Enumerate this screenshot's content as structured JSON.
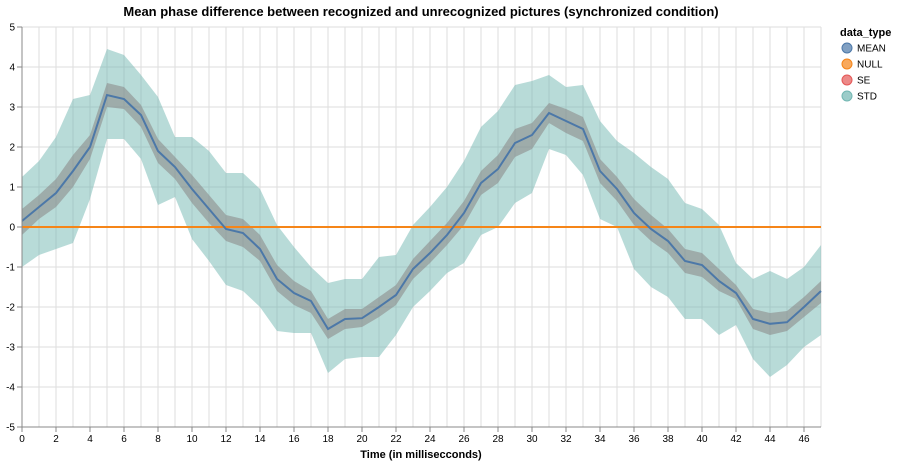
{
  "chart_data": {
    "type": "area",
    "title": "Mean phase difference between recognized and unrecognized pictures (synchronized condition)",
    "xlabel": "Time (in millisecconds)",
    "ylabel": "",
    "xlim": [
      0,
      47
    ],
    "ylim": [
      -5,
      5
    ],
    "x_ticks": [
      "0",
      "2",
      "4",
      "6",
      "8",
      "10",
      "12",
      "14",
      "16",
      "18",
      "20",
      "22",
      "24",
      "26",
      "28",
      "30",
      "32",
      "34",
      "36",
      "38",
      "40",
      "42",
      "44",
      "46"
    ],
    "y_ticks": [
      "5",
      "4",
      "3",
      "2",
      "1",
      "0",
      "-1",
      "-2",
      "-3",
      "-4",
      "-5"
    ],
    "grid": true,
    "legend": {
      "title": "data_type",
      "placement": "top-right",
      "items": [
        {
          "label": "MEAN",
          "color": "#4c78a8"
        },
        {
          "label": "NULL",
          "color": "#f58518"
        },
        {
          "label": "SE",
          "color": "#e45756"
        },
        {
          "label": "STD",
          "color": "#72b7b2"
        }
      ]
    },
    "x": [
      0,
      1,
      2,
      3,
      4,
      5,
      6,
      7,
      8,
      9,
      10,
      11,
      12,
      13,
      14,
      15,
      16,
      17,
      18,
      19,
      20,
      21,
      22,
      23,
      24,
      25,
      26,
      27,
      28,
      29,
      30,
      31,
      32,
      33,
      34,
      35,
      36,
      37,
      38,
      39,
      40,
      41,
      42,
      43,
      44,
      45,
      46,
      47
    ],
    "series": [
      {
        "name": "MEAN",
        "color": "#4c78a8",
        "values": [
          0.15,
          0.5,
          0.85,
          1.4,
          2.0,
          3.3,
          3.2,
          2.8,
          1.9,
          1.5,
          0.95,
          0.45,
          -0.05,
          -0.15,
          -0.55,
          -1.3,
          -1.65,
          -1.85,
          -2.55,
          -2.3,
          -2.28,
          -2.0,
          -1.7,
          -1.05,
          -0.65,
          -0.2,
          0.35,
          1.1,
          1.45,
          2.1,
          2.3,
          2.85,
          2.65,
          2.45,
          1.4,
          0.95,
          0.35,
          -0.05,
          -0.35,
          -0.85,
          -0.95,
          -1.35,
          -1.65,
          -2.3,
          -2.42,
          -2.38,
          -2.0,
          -1.6
        ]
      },
      {
        "name": "SE",
        "color": "#e45756",
        "lower": [
          -0.2,
          0.2,
          0.5,
          1.0,
          1.7,
          3.0,
          2.95,
          2.5,
          1.6,
          1.2,
          0.6,
          0.1,
          -0.35,
          -0.5,
          -0.85,
          -1.6,
          -1.95,
          -2.15,
          -2.8,
          -2.55,
          -2.5,
          -2.25,
          -1.95,
          -1.3,
          -0.9,
          -0.45,
          0.05,
          0.8,
          1.1,
          1.75,
          1.95,
          2.6,
          2.35,
          2.15,
          1.1,
          0.65,
          0.05,
          -0.35,
          -0.65,
          -1.15,
          -1.25,
          -1.6,
          -1.8,
          -2.55,
          -2.7,
          -2.6,
          -2.25,
          -1.9
        ],
        "upper": [
          0.45,
          0.8,
          1.2,
          1.8,
          2.3,
          3.6,
          3.5,
          3.05,
          2.2,
          1.75,
          1.3,
          0.8,
          0.3,
          0.2,
          -0.2,
          -0.95,
          -1.35,
          -1.6,
          -2.3,
          -2.05,
          -2.05,
          -1.75,
          -1.45,
          -0.8,
          -0.35,
          0.1,
          0.65,
          1.4,
          1.8,
          2.45,
          2.6,
          3.1,
          2.95,
          2.75,
          1.7,
          1.25,
          0.7,
          0.3,
          -0.05,
          -0.55,
          -0.65,
          -1.05,
          -1.45,
          -2.05,
          -2.15,
          -2.1,
          -1.75,
          -1.35
        ]
      },
      {
        "name": "STD",
        "color": "#72b7b2",
        "lower": [
          -1.0,
          -0.7,
          -0.55,
          -0.4,
          0.7,
          2.2,
          2.2,
          1.7,
          0.55,
          0.75,
          -0.3,
          -0.85,
          -1.45,
          -1.6,
          -2.0,
          -2.6,
          -2.65,
          -2.65,
          -3.65,
          -3.3,
          -3.25,
          -3.25,
          -2.7,
          -2.0,
          -1.6,
          -1.15,
          -0.9,
          -0.2,
          0.0,
          0.6,
          0.85,
          1.95,
          1.8,
          1.3,
          0.2,
          0.0,
          -1.05,
          -1.5,
          -1.75,
          -2.3,
          -2.3,
          -2.7,
          -2.45,
          -3.3,
          -3.75,
          -3.45,
          -3.0,
          -2.7
        ],
        "upper": [
          1.25,
          1.65,
          2.25,
          3.2,
          3.3,
          4.45,
          4.3,
          3.8,
          3.25,
          2.25,
          2.25,
          1.9,
          1.35,
          1.35,
          0.95,
          0.05,
          -0.5,
          -1.0,
          -1.4,
          -1.3,
          -1.3,
          -0.75,
          -0.7,
          0.05,
          0.5,
          1.0,
          1.65,
          2.5,
          2.9,
          3.55,
          3.65,
          3.8,
          3.5,
          3.55,
          2.65,
          2.15,
          1.85,
          1.5,
          1.2,
          0.6,
          0.45,
          0.05,
          -0.9,
          -1.3,
          -1.1,
          -1.3,
          -1.0,
          -0.45
        ]
      },
      {
        "name": "NULL",
        "color": "#f58518",
        "values": [
          0,
          0,
          0,
          0,
          0,
          0,
          0,
          0,
          0,
          0,
          0,
          0,
          0,
          0,
          0,
          0,
          0,
          0,
          0,
          0,
          0,
          0,
          0,
          0,
          0,
          0,
          0,
          0,
          0,
          0,
          0,
          0,
          0,
          0,
          0,
          0,
          0,
          0,
          0,
          0,
          0,
          0,
          0,
          0,
          0,
          0,
          0,
          0
        ]
      }
    ]
  }
}
